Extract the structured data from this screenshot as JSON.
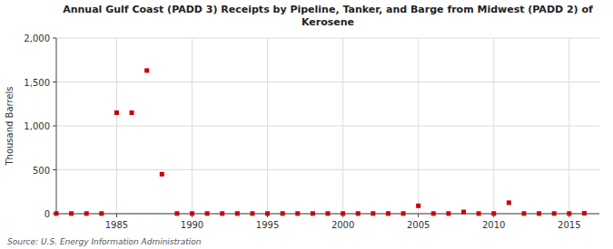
{
  "chart_data": {
    "type": "scatter",
    "title": "Annual Gulf Coast (PADD 3) Receipts by Pipeline, Tanker, and Barge from Midwest (PADD 2) of\nKerosene",
    "ylabel": "Thousand Barrels",
    "source": "Source: U.S. Energy Information Administration",
    "color": "#cc0000",
    "marker": "square",
    "grid": true,
    "xlim": [
      1981,
      2017
    ],
    "ylim": [
      0,
      2000
    ],
    "xticks": [
      1985,
      1990,
      1995,
      2000,
      2005,
      2010,
      2015
    ],
    "yticks": [
      0,
      500,
      {
        "value": 1000,
        "label": "1,000"
      },
      {
        "value": 1500,
        "label": "1,500"
      },
      {
        "value": 2000,
        "label": "2,000"
      }
    ],
    "x": [
      1981,
      1982,
      1983,
      1984,
      1985,
      1986,
      1987,
      1988,
      1989,
      1990,
      1991,
      1992,
      1993,
      1994,
      1995,
      1996,
      1997,
      1998,
      1999,
      2000,
      2001,
      2002,
      2003,
      2004,
      2005,
      2006,
      2007,
      2008,
      2009,
      2010,
      2011,
      2012,
      2013,
      2014,
      2015,
      2016
    ],
    "values": [
      2,
      2,
      2,
      2,
      1150,
      1150,
      1630,
      450,
      2,
      2,
      2,
      2,
      2,
      2,
      2,
      2,
      2,
      2,
      2,
      2,
      2,
      2,
      2,
      2,
      90,
      2,
      2,
      20,
      2,
      2,
      125,
      2,
      2,
      2,
      2,
      5
    ]
  }
}
